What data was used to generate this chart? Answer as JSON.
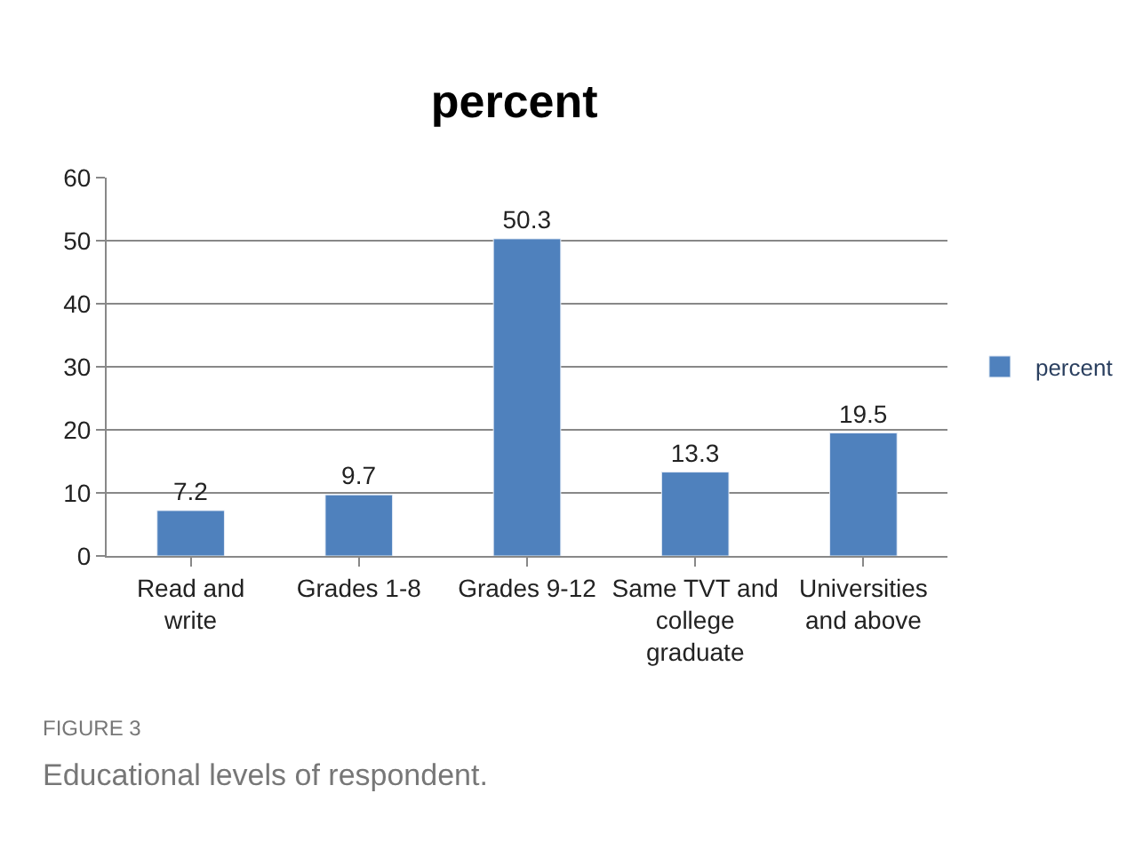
{
  "chart_data": {
    "type": "bar",
    "title": "percent",
    "categories": [
      "Read and write",
      "Grades 1-8",
      "Grades 9-12",
      "Same TVT and college graduate",
      "Universities and above"
    ],
    "series": [
      {
        "name": "percent",
        "color": "#4f81bd",
        "values": [
          7.2,
          9.7,
          50.3,
          13.3,
          19.5
        ]
      }
    ],
    "ylim": [
      0,
      60
    ],
    "yticks": [
      0,
      10,
      20,
      30,
      40,
      50,
      60
    ],
    "grid": "y",
    "legend": "right",
    "data_labels": true,
    "annotations": [
      "FIGURE 3",
      "Educational levels of respondent."
    ]
  }
}
